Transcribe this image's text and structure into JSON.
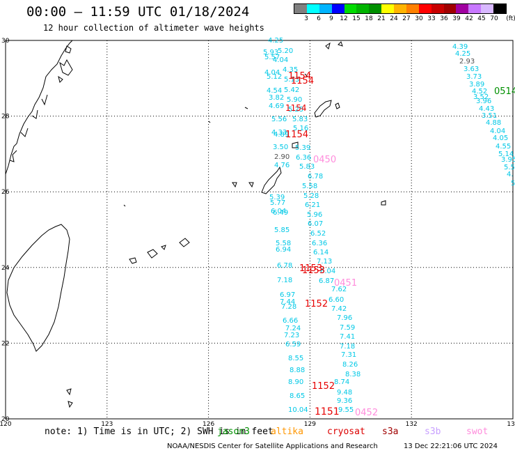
{
  "header": {
    "title": "00:00 – 11:59 UTC 01/18/2024",
    "subtitle": "12 hour collection of altimeter wave heights"
  },
  "legend": {
    "colors": [
      "#808080",
      "#00ffff",
      "#00b4ff",
      "#0000ff",
      "#00dc00",
      "#00b400",
      "#009000",
      "#ffff00",
      "#ffb400",
      "#ff8000",
      "#ff0000",
      "#c80000",
      "#a00000",
      "#a000a0",
      "#c878ff",
      "#d8b8ff",
      "#000000"
    ],
    "labels": [
      "3",
      "6",
      "9",
      "12",
      "15",
      "18",
      "21",
      "24",
      "27",
      "30",
      "33",
      "36",
      "39",
      "42",
      "45",
      "70",
      "(ft)"
    ]
  },
  "map": {
    "lon_labels": [
      "120",
      "123",
      "126",
      "129",
      "132",
      "135"
    ],
    "lat_labels": [
      "30",
      "28",
      "26",
      "24",
      "22",
      "20"
    ],
    "lon_range": [
      120,
      135
    ],
    "lat_range": [
      20,
      30
    ]
  },
  "tracks": {
    "west": [
      "4.25",
      "5.20",
      "5.93",
      "5.57",
      "4.04",
      "4.35",
      "4.04",
      "5.12",
      "5.13",
      "4.54",
      "5.42",
      "3.82",
      "5.90",
      "4.69",
      "5.25",
      "5.56",
      "5.83",
      "4.33",
      "4.89",
      "5.16",
      "3.50",
      "5.39",
      "2.90",
      "6.36",
      "4.76",
      "5.83",
      "6.78",
      "5.58",
      "5.39",
      "5.28",
      "5.77",
      "6.21",
      "6.04",
      "6.49",
      "5.96",
      "6.07",
      "5.85",
      "6.52",
      "5.58",
      "6.36",
      "6.94",
      "6.14",
      "6.78",
      "7.13",
      "6.04",
      "7.18",
      "6.87",
      "6.97",
      "7.62",
      "7.44",
      "6.60",
      "7.28",
      "7.42",
      "6.66",
      "7.96",
      "7.24",
      "7.59",
      "7.23",
      "7.41",
      "6.59",
      "7.18",
      "7.31",
      "8.55",
      "8.26",
      "8.88",
      "8.38",
      "8.90",
      "8.74",
      "8.65",
      "9.48",
      "9.36",
      "10.04",
      "9.55"
    ],
    "east": [
      "4.39",
      "4.25",
      "2.93",
      "3.63",
      "3.73",
      "3.89",
      "4.52",
      "3.52",
      "3.96",
      "4.43",
      "3.51",
      "4.88",
      "4.04",
      "4.05",
      "4.55",
      "5.14",
      "3.95",
      "5.5",
      "4.",
      "5"
    ],
    "passes": [
      "1154",
      "1154",
      "1154",
      "1154",
      "1153",
      "1153",
      "1152",
      "1152",
      "1151",
      "0450",
      "0451",
      "0452",
      "0514"
    ]
  },
  "footer": {
    "note": "note: 1) Time is in UTC; 2) SWH is in feet",
    "satellites": [
      {
        "name": "jason3",
        "color": "#009000"
      },
      {
        "name": "altika",
        "color": "#ff9600"
      },
      {
        "name": "cryosat",
        "color": "#dc0000"
      },
      {
        "name": "s3a",
        "color": "#a00000"
      },
      {
        "name": "s3b",
        "color": "#c8a0ff"
      },
      {
        "name": "swot",
        "color": "#ff8cdc"
      }
    ],
    "credit": "NOAA/NESDIS Center for Satellite Applications and Research",
    "timestamp": "13 Dec 22:21:06 UTC 2024"
  },
  "colors": {
    "track": "#00c8e6",
    "pass_red": "#e60000",
    "pass_pink": "#ff8cdc",
    "pass_green": "#009000",
    "pass_darkblue": "#0000b4",
    "land": "#000000",
    "grid": "#000000"
  }
}
